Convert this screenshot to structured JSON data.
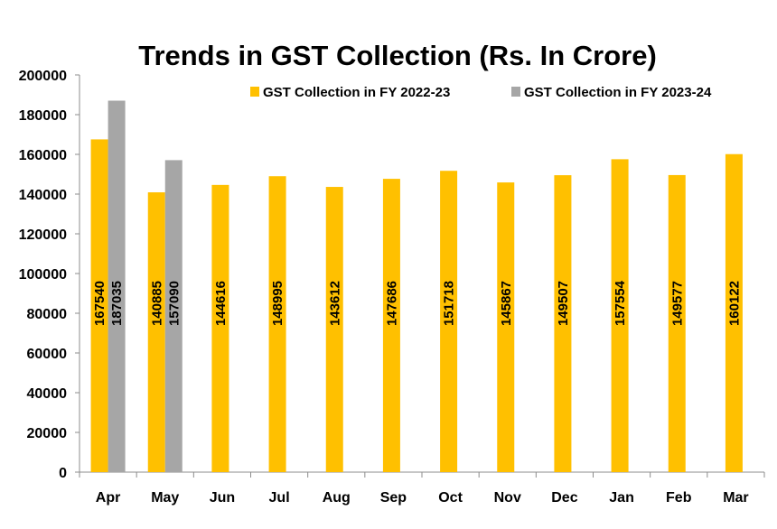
{
  "chart_data": {
    "type": "bar",
    "title": "Trends in GST Collection (Rs. In Crore)",
    "xlabel": "",
    "ylabel": "",
    "ylim": [
      0,
      200000
    ],
    "yticks": [
      0,
      20000,
      40000,
      60000,
      80000,
      100000,
      120000,
      140000,
      160000,
      180000,
      200000
    ],
    "grid": false,
    "legend_position": "top-right",
    "categories": [
      "Apr",
      "May",
      "Jun",
      "Jul",
      "Aug",
      "Sep",
      "Oct",
      "Nov",
      "Dec",
      "Jan",
      "Feb",
      "Mar"
    ],
    "series": [
      {
        "name": "GST Collection in FY 2022-23",
        "color": "#FFC000",
        "values": [
          167540,
          140885,
          144616,
          148995,
          143612,
          147686,
          151718,
          145867,
          149507,
          157554,
          149577,
          160122
        ]
      },
      {
        "name": "GST Collection in FY 2023-24",
        "color": "#A6A6A6",
        "values": [
          187035,
          157090,
          null,
          null,
          null,
          null,
          null,
          null,
          null,
          null,
          null,
          null
        ]
      }
    ]
  }
}
